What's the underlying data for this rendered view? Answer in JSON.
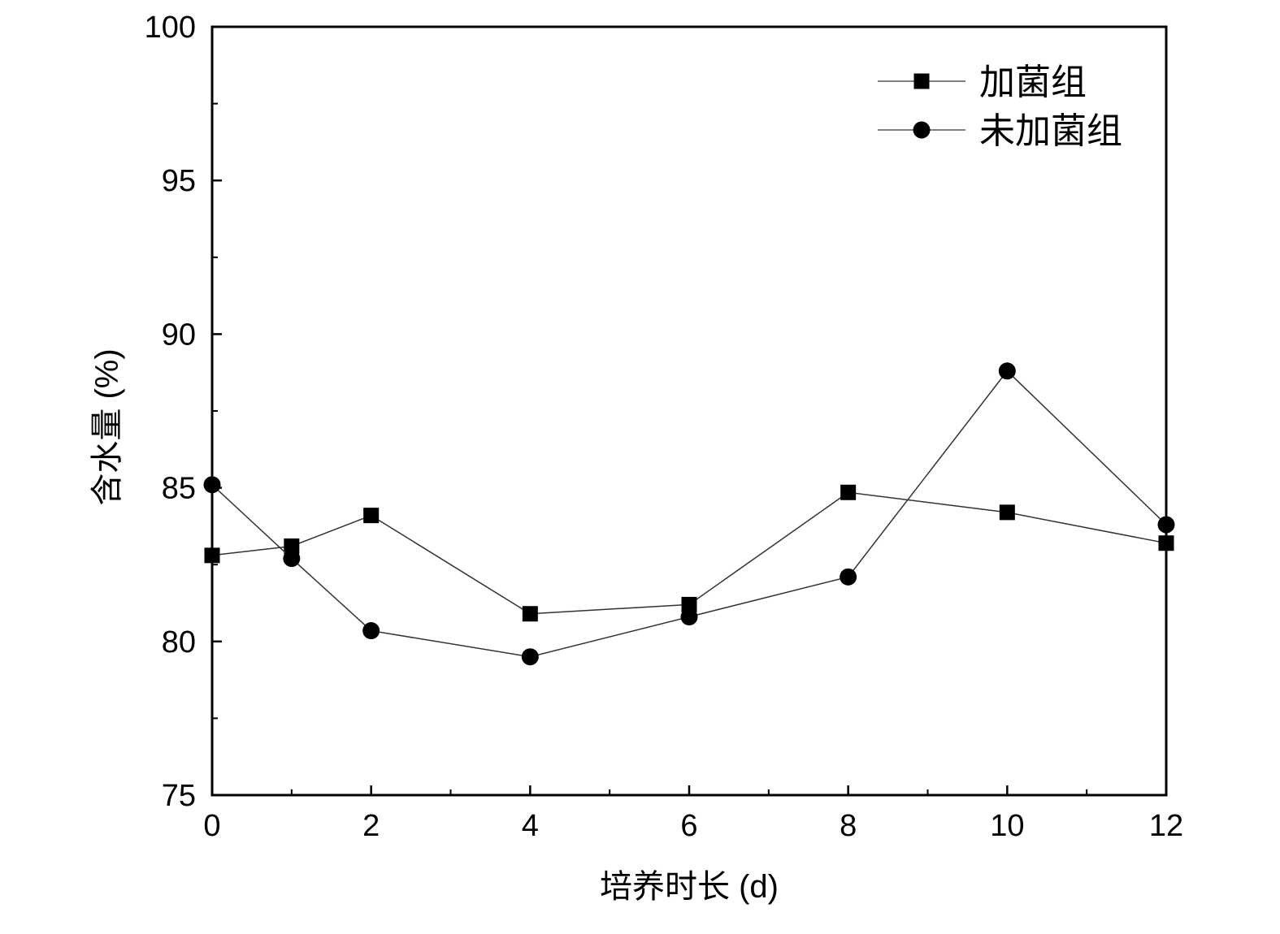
{
  "chart_data": {
    "type": "line",
    "title": "",
    "xlabel": "培养时长 (d)",
    "ylabel": "含水量 (%)",
    "xlim": [
      0,
      12
    ],
    "ylim": [
      75,
      100
    ],
    "xticks": [
      "0",
      "2",
      "4",
      "6",
      "8",
      "10",
      "12"
    ],
    "yticks": [
      "75",
      "80",
      "85",
      "90",
      "95",
      "100"
    ],
    "grid": false,
    "legend_position": "top-right",
    "x": [
      0,
      1,
      2,
      4,
      6,
      8,
      10,
      12
    ],
    "series": [
      {
        "name": "加菌组",
        "marker": "square",
        "color": "#000000",
        "values": [
          82.8,
          83.1,
          84.1,
          80.9,
          81.2,
          84.85,
          84.2,
          83.2
        ]
      },
      {
        "name": "未加菌组",
        "marker": "circle",
        "color": "#000000",
        "values": [
          85.1,
          82.7,
          80.35,
          79.5,
          80.8,
          82.1,
          88.8,
          83.8
        ]
      }
    ]
  }
}
